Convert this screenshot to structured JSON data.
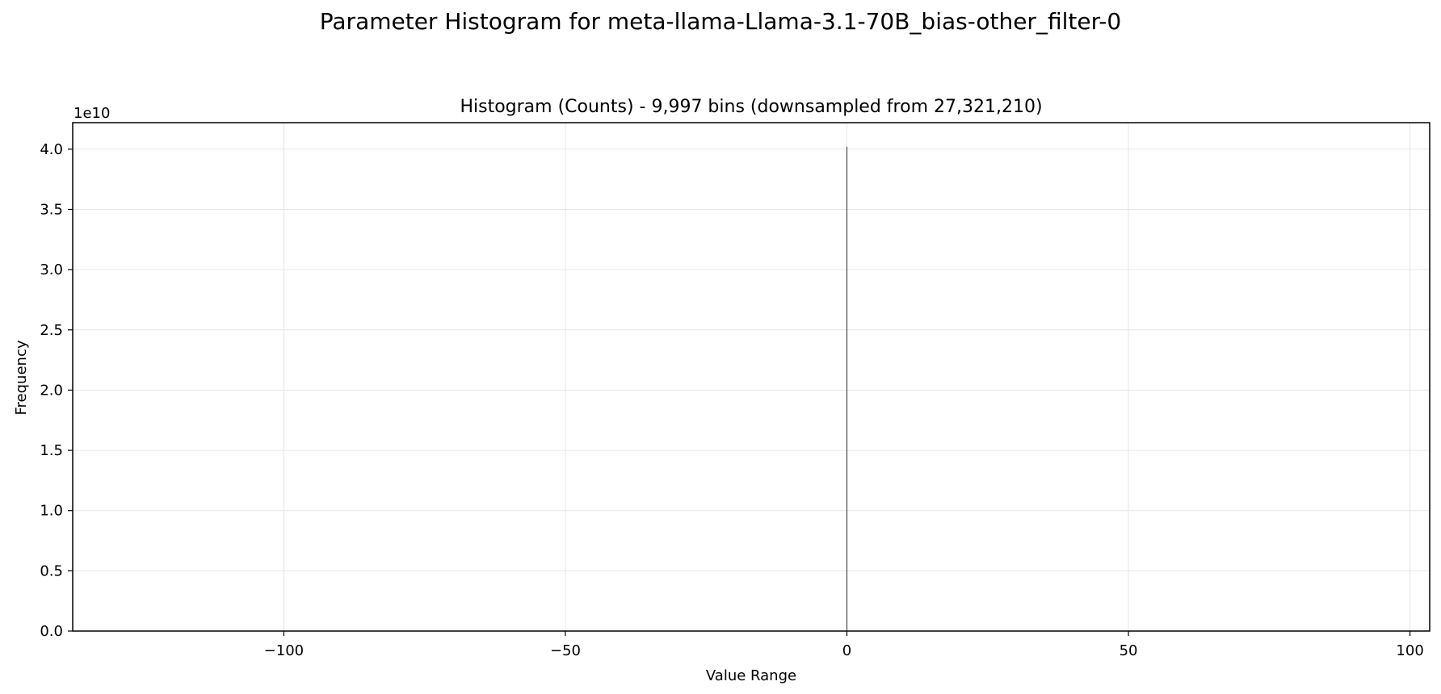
{
  "figure": {
    "suptitle": "Parameter Histogram for meta-llama-Llama-3.1-70B_bias-other_filter-0"
  },
  "chart_data": {
    "type": "bar",
    "title": "Histogram (Counts) - 9,997 bins (downsampled from 27,321,210)",
    "xlabel": "Value Range",
    "ylabel": "Frequency",
    "y_offset_label": "1e10",
    "xlim": [
      -137.5,
      103.5
    ],
    "ylim": [
      0,
      42200000000.0
    ],
    "x_ticks": [
      -100,
      -50,
      0,
      50,
      100
    ],
    "x_tick_labels": [
      "−100",
      "−50",
      "0",
      "50",
      "100"
    ],
    "y_ticks": [
      0,
      5000000000.0,
      10000000000.0,
      15000000000.0,
      20000000000.0,
      25000000000.0,
      30000000000.0,
      35000000000.0,
      40000000000.0
    ],
    "y_tick_labels": [
      "0.0",
      "0.5",
      "1.0",
      "1.5",
      "2.0",
      "2.5",
      "3.0",
      "3.5",
      "4.0"
    ],
    "grid": true,
    "bars": [
      {
        "x": 0,
        "value": 40200000000.0
      }
    ],
    "bar_color": "#4d4d4d",
    "grid_color": "#e6e6e6"
  }
}
